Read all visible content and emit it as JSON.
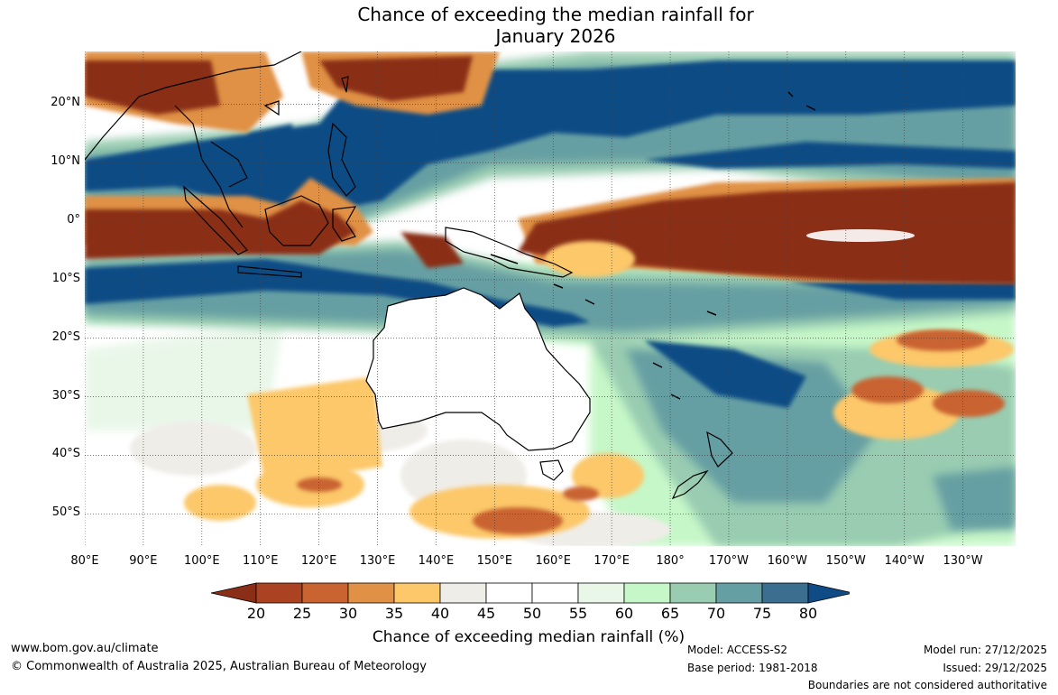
{
  "title": {
    "line1": "Chance of exceeding the median rainfall for",
    "line2": "January 2026"
  },
  "axes": {
    "latitudes": [
      {
        "label": "20°N",
        "value": 20
      },
      {
        "label": "10°N",
        "value": 10
      },
      {
        "label": "0°",
        "value": 0
      },
      {
        "label": "10°S",
        "value": -10
      },
      {
        "label": "20°S",
        "value": -20
      },
      {
        "label": "30°S",
        "value": -30
      },
      {
        "label": "40°S",
        "value": -40
      },
      {
        "label": "50°S",
        "value": -50
      }
    ],
    "longitudes": [
      {
        "label": "80°E",
        "value": 80
      },
      {
        "label": "90°E",
        "value": 90
      },
      {
        "label": "100°E",
        "value": 100
      },
      {
        "label": "110°E",
        "value": 110
      },
      {
        "label": "120°E",
        "value": 120
      },
      {
        "label": "130°E",
        "value": 130
      },
      {
        "label": "140°E",
        "value": 140
      },
      {
        "label": "150°E",
        "value": 150
      },
      {
        "label": "160°E",
        "value": 160
      },
      {
        "label": "170°E",
        "value": 170
      },
      {
        "label": "180°",
        "value": 180
      },
      {
        "label": "170°W",
        "value": 190
      },
      {
        "label": "160°W",
        "value": 200
      },
      {
        "label": "150°W",
        "value": 210
      },
      {
        "label": "140°W",
        "value": 220
      },
      {
        "label": "130°W",
        "value": 230
      }
    ],
    "lon_range": [
      80,
      239
    ],
    "lat_range": [
      -55.5,
      29
    ]
  },
  "legend": {
    "title": "Chance of exceeding median rainfall (%)",
    "ticks": [
      "20",
      "25",
      "30",
      "35",
      "40",
      "45",
      "50",
      "55",
      "60",
      "65",
      "70",
      "75",
      "80"
    ],
    "colors": [
      "#8b2e17",
      "#ab4322",
      "#c96431",
      "#e09145",
      "#fcc86a",
      "#efede8",
      "#ffffff",
      "#ffffff",
      "#e9f7e9",
      "#c6f7c8",
      "#99ccb1",
      "#669fa3",
      "#3c6f8f",
      "#0f4b85"
    ]
  },
  "footer": {
    "website": "www.bom.gov.au/climate",
    "copyright": "© Commonwealth of Australia 2025, Australian Bureau of Meteorology",
    "model": "Model: ACCESS-S2",
    "base_period": "Base period: 1981-2018",
    "model_run": "Model run: 27/12/2025",
    "issued": "Issued: 29/12/2025",
    "disclaimer": "Boundaries are not considered authoritative"
  }
}
